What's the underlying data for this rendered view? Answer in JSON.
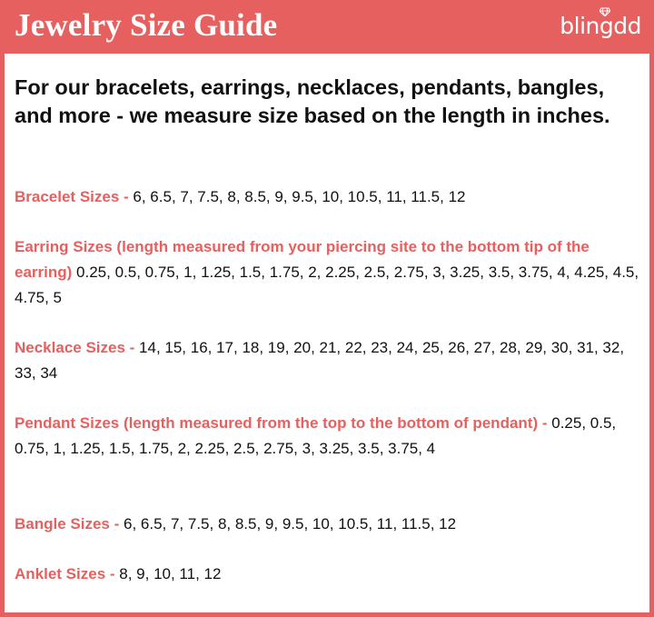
{
  "header": {
    "title": "Jewelry Size Guide",
    "logo_text": "blingdd",
    "background_color": "#e6605f",
    "logo_icon": "diamond-icon"
  },
  "intro": "For our bracelets, earrings, necklaces, pendants, bangles, and more - we measure size based on the length in inches.",
  "accent_color": "#e6605f",
  "sizes": [
    {
      "label": "Bracelet Sizes -",
      "values": "6, 6.5, 7, 7.5, 8, 8.5, 9, 9.5, 10, 10.5, 11, 11.5, 12"
    },
    {
      "label": "Earring Sizes (length measured from your piercing site to the bottom tip of the earring)",
      "values": "0.25, 0.5, 0.75, 1, 1.25, 1.5, 1.75, 2, 2.25, 2.5, 2.75, 3, 3.25, 3.5, 3.75, 4, 4.25, 4.5, 4.75, 5"
    },
    {
      "label": "Necklace Sizes -",
      "values": "14, 15, 16, 17, 18, 19, 20, 21, 22, 23, 24, 25, 26, 27, 28, 29, 30, 31, 32, 33, 34"
    },
    {
      "label": "Pendant Sizes (length measured from the top to the bottom of pendant) -",
      "values": "0.25, 0.5, 0.75, 1, 1.25, 1.5, 1.75, 2, 2.25, 2.5, 2.75, 3, 3.25, 3.5, 3.75, 4"
    },
    {
      "label": "Bangle Sizes -",
      "values": "6, 6.5, 7, 7.5, 8, 8.5, 9, 9.5, 10, 10.5, 11, 11.5, 12"
    },
    {
      "label": "Anklet Sizes -",
      "values": "8, 9, 10, 11, 12"
    }
  ]
}
